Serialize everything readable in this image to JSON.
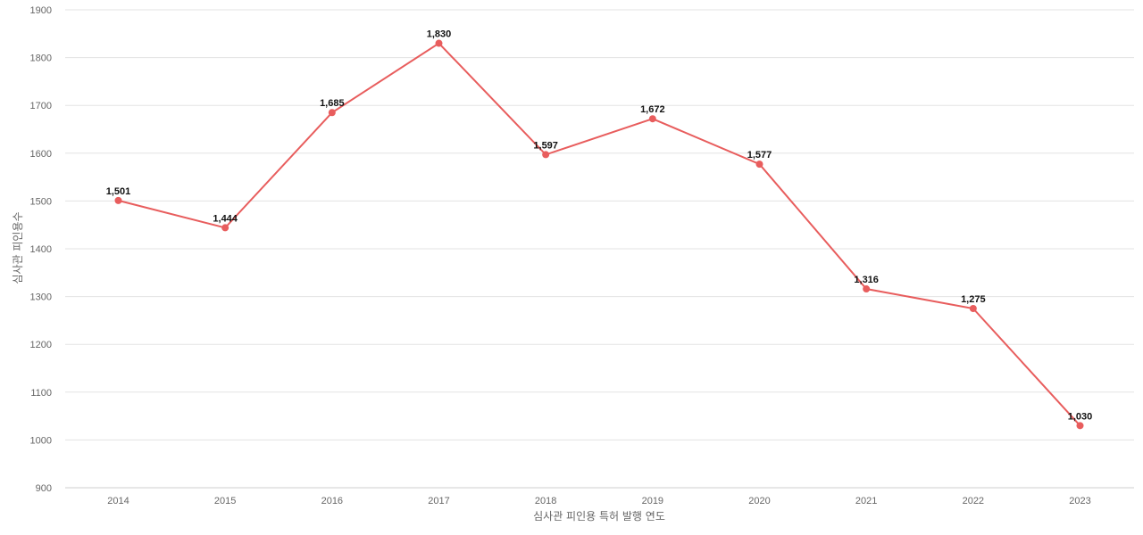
{
  "chart_data": {
    "type": "line",
    "title": "",
    "xlabel": "심사관 피인용 특허 발행 연도",
    "ylabel": "심사관 피인용수",
    "categories": [
      "2014",
      "2015",
      "2016",
      "2017",
      "2018",
      "2019",
      "2020",
      "2021",
      "2022",
      "2023"
    ],
    "series": [
      {
        "values": [
          1501,
          1444,
          1685,
          1830,
          1597,
          1672,
          1577,
          1316,
          1275,
          1030
        ],
        "labels": [
          "1,501",
          "1,444",
          "1,685",
          "1,830",
          "1,597",
          "1,672",
          "1,577",
          "1,316",
          "1,275",
          "1,030"
        ],
        "color": "#e85d5d"
      }
    ],
    "ylim": [
      900,
      1900
    ],
    "yticks": [
      "900",
      "1000",
      "1100",
      "1200",
      "1300",
      "1400",
      "1500",
      "1600",
      "1700",
      "1800",
      "1900"
    ],
    "grid": true,
    "legend": "none"
  }
}
